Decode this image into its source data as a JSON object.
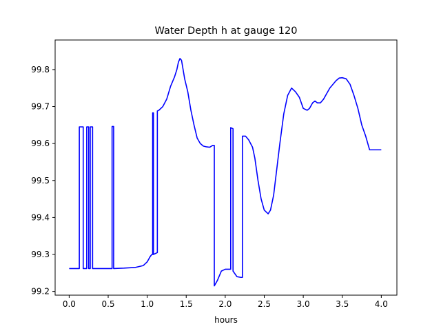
{
  "chart_data": {
    "type": "line",
    "title": "Water Depth h at gauge 120",
    "xlabel": "hours",
    "ylabel": "",
    "xlim": [
      -0.18,
      4.2
    ],
    "ylim": [
      99.19,
      99.88
    ],
    "xticks": [
      0.0,
      0.5,
      1.0,
      1.5,
      2.0,
      2.5,
      3.0,
      3.5,
      4.0
    ],
    "xtick_labels": [
      "0.0",
      "0.5",
      "1.0",
      "1.5",
      "2.0",
      "2.5",
      "3.0",
      "3.5",
      "4.0"
    ],
    "yticks": [
      99.2,
      99.3,
      99.4,
      99.5,
      99.6,
      99.7,
      99.8
    ],
    "ytick_labels": [
      "99.2",
      "99.3",
      "99.4",
      "99.5",
      "99.6",
      "99.7",
      "99.8"
    ],
    "grid": false,
    "series": [
      {
        "color": "#0000ff",
        "x": [
          0.0,
          0.13,
          0.13,
          0.18,
          0.18,
          0.225,
          0.225,
          0.25,
          0.25,
          0.27,
          0.27,
          0.3,
          0.3,
          0.32,
          0.32,
          0.55,
          0.55,
          0.57,
          0.57,
          0.7,
          0.85,
          0.95,
          1.0,
          1.04,
          1.06,
          1.07,
          1.07,
          1.08,
          1.08,
          1.13,
          1.13,
          1.15,
          1.2,
          1.25,
          1.3,
          1.35,
          1.38,
          1.4,
          1.42,
          1.44,
          1.46,
          1.48,
          1.52,
          1.56,
          1.6,
          1.64,
          1.68,
          1.72,
          1.76,
          1.8,
          1.84,
          1.86,
          1.86,
          1.9,
          1.95,
          2.0,
          2.07,
          2.07,
          2.1,
          2.1,
          2.15,
          2.2,
          2.22,
          2.22,
          2.26,
          2.3,
          2.35,
          2.38,
          2.42,
          2.46,
          2.5,
          2.55,
          2.58,
          2.62,
          2.66,
          2.7,
          2.75,
          2.8,
          2.85,
          2.9,
          2.95,
          3.0,
          3.05,
          3.08,
          3.12,
          3.15,
          3.18,
          3.22,
          3.26,
          3.3,
          3.34,
          3.38,
          3.42,
          3.46,
          3.5,
          3.55,
          3.6,
          3.65,
          3.7,
          3.75,
          3.8,
          3.85,
          3.9,
          3.95,
          4.0
        ],
        "y": [
          99.262,
          99.262,
          99.645,
          99.645,
          99.262,
          99.262,
          99.645,
          99.645,
          99.262,
          99.262,
          99.645,
          99.645,
          99.262,
          99.262,
          99.262,
          99.262,
          99.646,
          99.646,
          99.262,
          99.263,
          99.265,
          99.27,
          99.28,
          99.295,
          99.3,
          99.3,
          99.683,
          99.683,
          99.3,
          99.305,
          99.688,
          99.69,
          99.7,
          99.72,
          99.755,
          99.78,
          99.8,
          99.82,
          99.83,
          99.825,
          99.8,
          99.775,
          99.74,
          99.69,
          99.65,
          99.615,
          99.6,
          99.593,
          99.591,
          99.59,
          99.595,
          99.595,
          99.215,
          99.23,
          99.255,
          99.26,
          99.26,
          99.643,
          99.64,
          99.255,
          99.24,
          99.238,
          99.238,
          99.62,
          99.62,
          99.61,
          99.59,
          99.56,
          99.5,
          99.45,
          99.42,
          99.41,
          99.42,
          99.46,
          99.53,
          99.6,
          99.68,
          99.73,
          99.75,
          99.74,
          99.725,
          99.695,
          99.69,
          99.695,
          99.71,
          99.715,
          99.71,
          99.71,
          99.72,
          99.735,
          99.75,
          99.76,
          99.77,
          99.777,
          99.778,
          99.775,
          99.76,
          99.73,
          99.695,
          99.65,
          99.62,
          99.583,
          99.583,
          99.583,
          99.583
        ]
      }
    ]
  }
}
